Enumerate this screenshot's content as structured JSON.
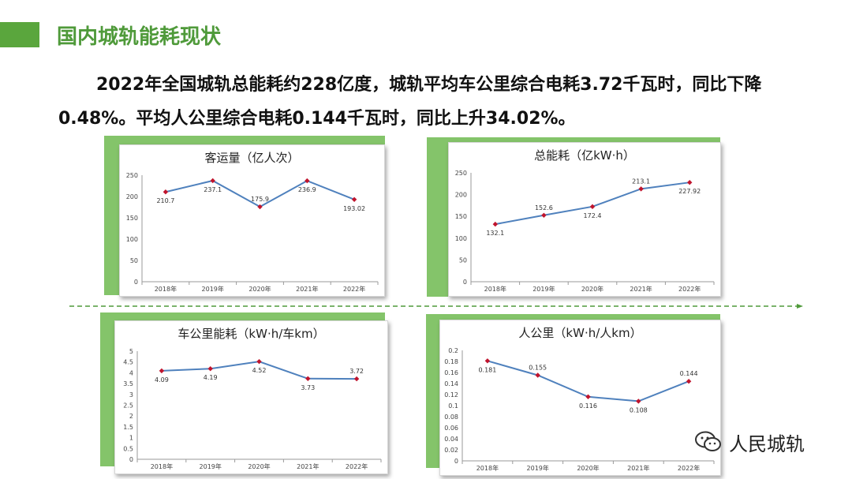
{
  "slide": {
    "title": "国内城轨能耗现状",
    "summary_line1": "2022年全国城轨总能耗约228亿度，城轨平均车公里综合电耗3.72千瓦时，同比下降",
    "summary_line2": "0.48%。平均人公里综合电耗0.144千瓦时，同比上升34.02%。",
    "watermark": "人民城轨",
    "colors": {
      "accent": "#5aa63d",
      "title": "#4f9a3a",
      "line": "#4f81bd",
      "marker": "#c0142d",
      "panel": "#84c46a"
    }
  },
  "chart_data": [
    {
      "type": "line",
      "title": "客运量（亿人次）",
      "categories": [
        "2018年",
        "2019年",
        "2020年",
        "2021年",
        "2022年"
      ],
      "values": [
        210.7,
        237.1,
        175.9,
        236.9,
        193.02
      ],
      "labels": [
        "210.7",
        "237.1",
        "175.9",
        "236.9",
        "193.02"
      ],
      "label_pos": [
        "below",
        "below",
        "above",
        "below",
        "below"
      ],
      "ylim": [
        0,
        250
      ],
      "yticks": [
        "0",
        "50",
        "100",
        "150",
        "200",
        "250"
      ],
      "grid": false
    },
    {
      "type": "line",
      "title": "总能耗（亿kW·h）",
      "categories": [
        "2018年",
        "2019年",
        "2020年",
        "2021年",
        "2022年"
      ],
      "values": [
        132.1,
        152.6,
        172.4,
        213.1,
        227.92
      ],
      "labels": [
        "132.1",
        "152.6",
        "172.4",
        "213.1",
        "227.92"
      ],
      "label_pos": [
        "below",
        "above",
        "below",
        "above",
        "below"
      ],
      "ylim": [
        0,
        250
      ],
      "yticks": [
        "0",
        "50",
        "100",
        "150",
        "200",
        "250"
      ],
      "grid": false
    },
    {
      "type": "line",
      "title": "车公里能耗（kW·h/车km）",
      "categories": [
        "2018年",
        "2019年",
        "2020年",
        "2021年",
        "2022年"
      ],
      "values": [
        4.09,
        4.19,
        4.52,
        3.73,
        3.72
      ],
      "labels": [
        "4.09",
        "4.19",
        "4.52",
        "3.73",
        "3.72"
      ],
      "label_pos": [
        "below",
        "below",
        "below",
        "below",
        "above"
      ],
      "ylim": [
        0,
        5
      ],
      "yticks": [
        "0",
        "0.5",
        "1",
        "1.5",
        "2",
        "2.5",
        "3",
        "3.5",
        "4",
        "4.5",
        "5"
      ],
      "grid": false
    },
    {
      "type": "line",
      "title": "人公里（kW·h/人km）",
      "categories": [
        "2018年",
        "2019年",
        "2020年",
        "2021年",
        "2022年"
      ],
      "values": [
        0.181,
        0.155,
        0.116,
        0.108,
        0.144
      ],
      "labels": [
        "0.181",
        "0.155",
        "0.116",
        "0.108",
        "0.144"
      ],
      "label_pos": [
        "below",
        "above",
        "below",
        "below",
        "above"
      ],
      "ylim": [
        0,
        0.2
      ],
      "yticks": [
        "0",
        "0.02",
        "0.04",
        "0.06",
        "0.08",
        "0.1",
        "0.12",
        "0.14",
        "0.16",
        "0.18",
        "0.2"
      ],
      "grid": false
    }
  ]
}
